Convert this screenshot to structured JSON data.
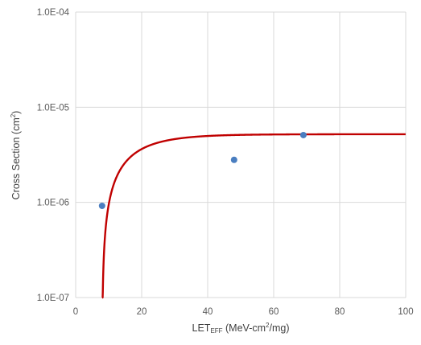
{
  "chart_data": {
    "type": "scatter",
    "title": "",
    "xlabel": {
      "main": "LET",
      "sub": "EFF",
      "rest": " (MeV-cm",
      "sup": "2",
      "end": "/mg)"
    },
    "ylabel": {
      "main": "Cross Section (cm",
      "sup": "2",
      "end": ")"
    },
    "x_range": [
      0,
      100
    ],
    "y_range": [
      1e-07,
      0.0001
    ],
    "y_scale": "log",
    "grid": true,
    "legend": "none",
    "x_ticks": [
      "0",
      "20",
      "40",
      "60",
      "80",
      "100"
    ],
    "y_ticks": [
      "1.0E-07",
      "1.0E-06",
      "1.0E-05",
      "1.0E-04"
    ],
    "points": [
      {
        "x": 8.0,
        "y": 9.2e-07
      },
      {
        "x": 48.0,
        "y": 2.8e-06
      },
      {
        "x": 69.0,
        "y": 5.1e-06
      }
    ],
    "fit": {
      "type": "weibull",
      "saturation": 5.2e-06,
      "threshold": 8.0,
      "width": 10.0,
      "shape": 1.0,
      "x_max": 100
    },
    "colors": {
      "points": "#4a7ec0",
      "fit": "#c00000",
      "grid": "#d9d9d9",
      "text": "#595959"
    }
  }
}
